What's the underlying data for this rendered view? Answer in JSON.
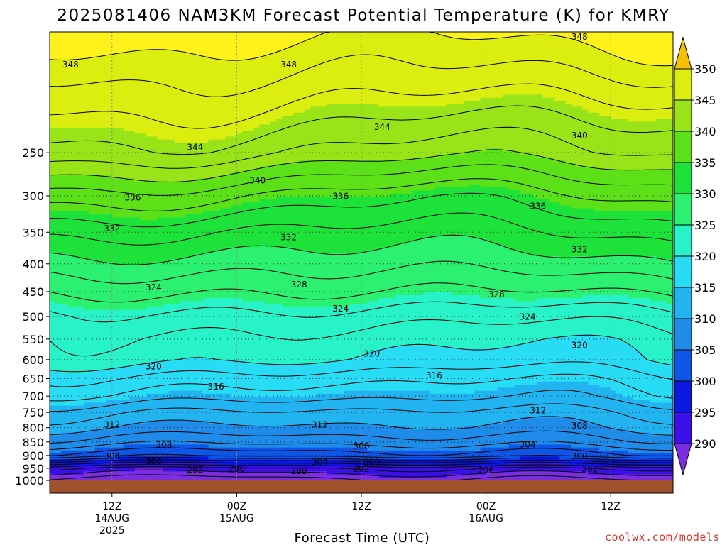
{
  "title": "2025081406 NAM3KM Forecast Potential Temperature (K) for KMRY",
  "credit": "coolwx.com/models",
  "chart_data": {
    "type": "heatmap",
    "title": "2025081406 NAM3KM Forecast Potential Temperature (K) for KMRY",
    "xlabel": "Forecast Time (UTC)",
    "ylabel": "",
    "y_scale": "log",
    "ylim": [
      1000,
      150
    ],
    "y_ticks": [
      250,
      300,
      350,
      400,
      450,
      500,
      550,
      600,
      650,
      700,
      750,
      800,
      850,
      900,
      950,
      1000
    ],
    "xlim": [
      "2025-08-14 06Z",
      "2025-08-16 18Z"
    ],
    "x_ticks": [
      {
        "time": "2025-08-14 12Z",
        "lines": [
          "12Z",
          "14AUG",
          "2025"
        ]
      },
      {
        "time": "2025-08-15 00Z",
        "lines": [
          "00Z",
          "15AUG"
        ]
      },
      {
        "time": "2025-08-15 12Z",
        "lines": [
          "12Z"
        ]
      },
      {
        "time": "2025-08-16 00Z",
        "lines": [
          "00Z",
          "16AUG"
        ]
      },
      {
        "time": "2025-08-16 12Z",
        "lines": [
          "12Z"
        ]
      }
    ],
    "grid": true,
    "colorbar": {
      "levels": [
        290,
        295,
        300,
        305,
        310,
        315,
        320,
        325,
        330,
        335,
        340,
        345,
        350
      ],
      "labels": [
        "290",
        "295",
        "300",
        "305",
        "310",
        "315",
        "320",
        "325",
        "330",
        "335",
        "340",
        "345",
        "350"
      ],
      "colors": [
        "#7b2de0",
        "#3b10e8",
        "#0a18e0",
        "#0f56e6",
        "#1e8ce8",
        "#22b4f0",
        "#28dcf6",
        "#28f2c8",
        "#2cf070",
        "#1ce23a",
        "#5ce018",
        "#98e418",
        "#dcee10",
        "#fff21a",
        "#f5c000"
      ],
      "orientation": "right"
    },
    "contour_interval": 2,
    "ground_color": "#a0522d",
    "contour_labels": [
      {
        "value": 348,
        "time": "2025-08-14 08Z",
        "p": 172
      },
      {
        "value": 348,
        "time": "2025-08-15 05Z",
        "p": 172
      },
      {
        "value": 348,
        "time": "2025-08-16 09Z",
        "p": 153
      },
      {
        "value": 344,
        "time": "2025-08-14 20Z",
        "p": 244
      },
      {
        "value": 344,
        "time": "2025-08-15 14Z",
        "p": 224
      },
      {
        "value": 340,
        "time": "2025-08-15 02Z",
        "p": 281
      },
      {
        "value": 340,
        "time": "2025-08-16 09Z",
        "p": 232
      },
      {
        "value": 336,
        "time": "2025-08-14 14Z",
        "p": 302
      },
      {
        "value": 336,
        "time": "2025-08-15 10Z",
        "p": 300
      },
      {
        "value": 336,
        "time": "2025-08-16 05Z",
        "p": 313
      },
      {
        "value": 332,
        "time": "2025-08-14 12Z",
        "p": 344
      },
      {
        "value": 332,
        "time": "2025-08-15 05Z",
        "p": 357
      },
      {
        "value": 332,
        "time": "2025-08-16 09Z",
        "p": 376
      },
      {
        "value": 328,
        "time": "2025-08-15 06Z",
        "p": 436
      },
      {
        "value": 328,
        "time": "2025-08-16 01Z",
        "p": 455
      },
      {
        "value": 324,
        "time": "2025-08-14 16Z",
        "p": 441
      },
      {
        "value": 324,
        "time": "2025-08-15 10Z",
        "p": 483
      },
      {
        "value": 324,
        "time": "2025-08-16 04Z",
        "p": 500
      },
      {
        "value": 320,
        "time": "2025-08-15 13Z",
        "p": 584
      },
      {
        "value": 320,
        "time": "2025-08-16 09Z",
        "p": 564
      },
      {
        "value": 320,
        "time": "2025-08-14 16Z",
        "p": 617
      },
      {
        "value": 316,
        "time": "2025-08-14 22Z",
        "p": 672
      },
      {
        "value": 316,
        "time": "2025-08-15 19Z",
        "p": 640
      },
      {
        "value": 312,
        "time": "2025-08-14 12Z",
        "p": 789
      },
      {
        "value": 312,
        "time": "2025-08-15 08Z",
        "p": 789
      },
      {
        "value": 312,
        "time": "2025-08-16 05Z",
        "p": 743
      },
      {
        "value": 308,
        "time": "2025-08-14 17Z",
        "p": 859
      },
      {
        "value": 308,
        "time": "2025-08-15 12Z",
        "p": 863
      },
      {
        "value": 308,
        "time": "2025-08-16 09Z",
        "p": 793
      },
      {
        "value": 304,
        "time": "2025-08-14 12Z",
        "p": 902
      },
      {
        "value": 304,
        "time": "2025-08-15 08Z",
        "p": 924
      },
      {
        "value": 304,
        "time": "2025-08-16 04Z",
        "p": 858
      },
      {
        "value": 300,
        "time": "2025-08-14 16Z",
        "p": 922
      },
      {
        "value": 300,
        "time": "2025-08-15 13Z",
        "p": 925
      },
      {
        "value": 300,
        "time": "2025-08-16 09Z",
        "p": 902
      },
      {
        "value": 296,
        "time": "2025-08-15 00Z",
        "p": 952
      },
      {
        "value": 296,
        "time": "2025-08-16 00Z",
        "p": 956
      },
      {
        "value": 292,
        "time": "2025-08-14 20Z",
        "p": 954
      },
      {
        "value": 292,
        "time": "2025-08-15 12Z",
        "p": 952
      },
      {
        "value": 292,
        "time": "2025-08-16 10Z",
        "p": 953
      },
      {
        "value": 288,
        "time": "2025-08-15 06Z",
        "p": 961
      }
    ]
  }
}
